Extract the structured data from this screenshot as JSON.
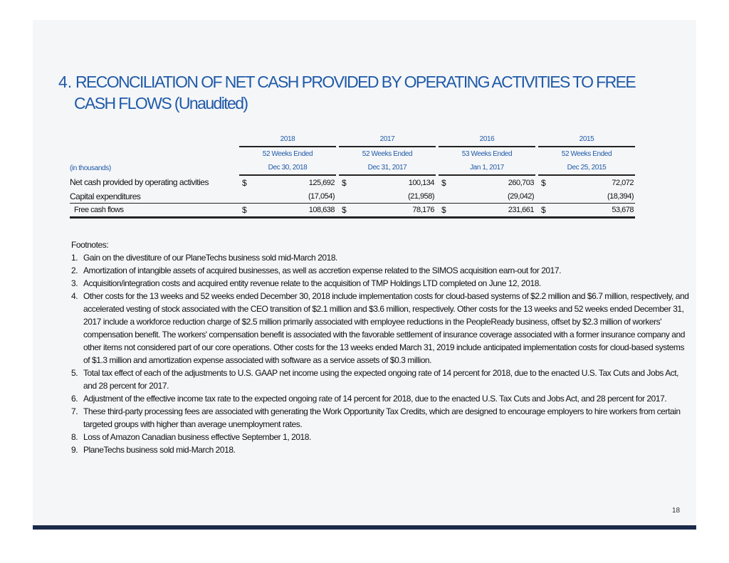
{
  "title": {
    "number": "4.",
    "line1": "RECONCILIATION OF NET CASH PROVIDED BY OPERATING ACTIVITIES TO FREE",
    "line2": "CASH FLOWS (Unaudited)"
  },
  "table": {
    "units": "(in thousands)",
    "columns": [
      {
        "year": "2018",
        "period": "52 Weeks Ended",
        "date": "Dec 30, 2018"
      },
      {
        "year": "2017",
        "period": "52 Weeks Ended",
        "date": "Dec 31, 2017"
      },
      {
        "year": "2016",
        "period": "53 Weeks Ended",
        "date": "Jan 1, 2017"
      },
      {
        "year": "2015",
        "period": "52 Weeks Ended",
        "date": "Dec 25, 2015"
      }
    ],
    "rows": [
      {
        "label": "Net cash provided by operating activities",
        "currency": "$",
        "values": [
          "125,692",
          "100,134",
          "260,703",
          "72,072"
        ]
      },
      {
        "label": "Capital expenditures",
        "currency": "",
        "values": [
          "(17,054)",
          "(21,958)",
          "(29,042)",
          "(18,394)"
        ]
      },
      {
        "label": "Free cash flows",
        "currency": "$",
        "values": [
          "108,638",
          "78,176",
          "231,661",
          "53,678"
        ]
      }
    ]
  },
  "footnotes": {
    "heading": "Footnotes:",
    "items": [
      {
        "n": "1.",
        "text": "Gain on the divestiture of our PlaneTechs business sold mid-March 2018."
      },
      {
        "n": "2.",
        "text": "Amortization of intangible assets of acquired businesses, as well as accretion expense related to the SIMOS acquisition earn-out for 2017."
      },
      {
        "n": "3.",
        "text": "Acquisition/integration costs and acquired entity revenue relate to the acquisition of TMP Holdings LTD completed on June 12, 2018."
      },
      {
        "n": "4.",
        "text": "Other costs for the 13 weeks and 52 weeks ended December 30, 2018 include implementation costs for cloud-based systems of $2.2 million and $6.7 million, respectively, and accelerated vesting of stock associated with the CEO transition of $2.1 million and $3.6 million, respectively. Other costs for the 13 weeks and 52 weeks ended December 31, 2017 include a workforce reduction charge of $2.5 million primarily associated with employee reductions in the PeopleReady business, offset by $2.3 million of workers' compensation benefit. The workers' compensation benefit is associated with the favorable settlement of insurance coverage associated with a former insurance company and other items not considered part of our core operations. Other costs for the 13 weeks ended March 31, 2019 include anticipated implementation costs for cloud-based systems of $1.3 million and amortization expense associated with software as a service assets of $0.3 million."
      },
      {
        "n": "5.",
        "text": "Total tax effect of each of the adjustments to U.S. GAAP net income using the expected ongoing rate of 14 percent for 2018, due to the enacted U.S. Tax Cuts and Jobs Act, and 28 percent for 2017."
      },
      {
        "n": "6.",
        "text": "Adjustment of the effective income tax rate to the expected ongoing rate of 14 percent for 2018, due to the enacted U.S. Tax Cuts and Jobs Act, and 28 percent for 2017."
      },
      {
        "n": "7.",
        "text": "These third-party processing fees are associated with generating the Work Opportunity Tax Credits, which are designed to encourage employers to hire workers from certain targeted groups with higher than average unemployment rates."
      },
      {
        "n": "8.",
        "text": "Loss of Amazon Canadian business effective September 1, 2018."
      },
      {
        "n": "9.",
        "text": "PlaneTechs business sold mid-March 2018."
      }
    ]
  },
  "page_number": "18",
  "colors": {
    "accent": "#1f5aa8",
    "footer_bar": "#1b2a4a",
    "background": "#f5f6f8"
  }
}
